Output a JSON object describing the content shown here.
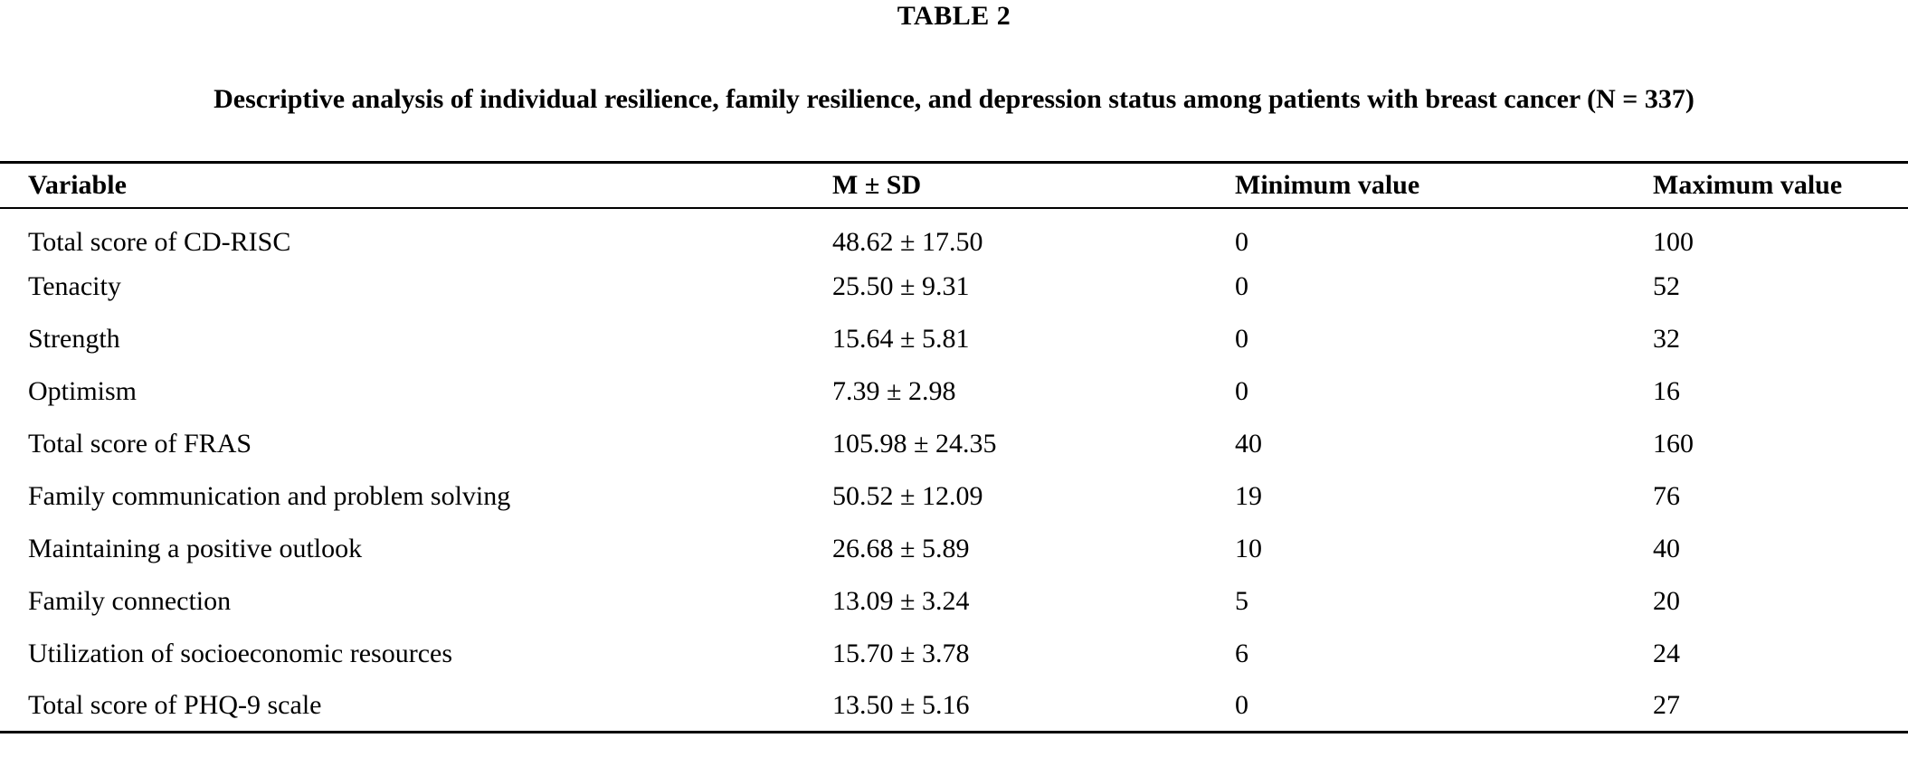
{
  "table_label": "TABLE 2",
  "caption": "Descriptive analysis of individual resilience, family resilience, and depression status among patients with breast cancer (N = 337)",
  "table": {
    "columns": [
      "Variable",
      "M ± SD",
      "Minimum value",
      "Maximum value"
    ],
    "rows": [
      {
        "variable": "Total score of CD-RISC",
        "m_sd": "48.62 ± 17.50",
        "min": "0",
        "max": "100"
      },
      {
        "variable": "Tenacity",
        "m_sd": "25.50 ± 9.31",
        "min": "0",
        "max": "52"
      },
      {
        "variable": "Strength",
        "m_sd": "15.64 ± 5.81",
        "min": "0",
        "max": "32"
      },
      {
        "variable": "Optimism",
        "m_sd": "7.39 ± 2.98",
        "min": "0",
        "max": "16"
      },
      {
        "variable": "Total score of FRAS",
        "m_sd": "105.98 ± 24.35",
        "min": "40",
        "max": "160"
      },
      {
        "variable": "Family communication and problem solving",
        "m_sd": "50.52 ± 12.09",
        "min": "19",
        "max": "76"
      },
      {
        "variable": "Maintaining a positive outlook",
        "m_sd": "26.68 ± 5.89",
        "min": "10",
        "max": "40"
      },
      {
        "variable": "Family connection",
        "m_sd": "13.09 ± 3.24",
        "min": "5",
        "max": "20"
      },
      {
        "variable": "Utilization of socioeconomic resources",
        "m_sd": "15.70 ± 3.78",
        "min": "6",
        "max": "24"
      },
      {
        "variable": "Total score of PHQ-9 scale",
        "m_sd": "13.50 ± 5.16",
        "min": "0",
        "max": "27"
      }
    ]
  },
  "colors": {
    "text": "#000000",
    "background": "#ffffff",
    "rule": "#000000"
  }
}
